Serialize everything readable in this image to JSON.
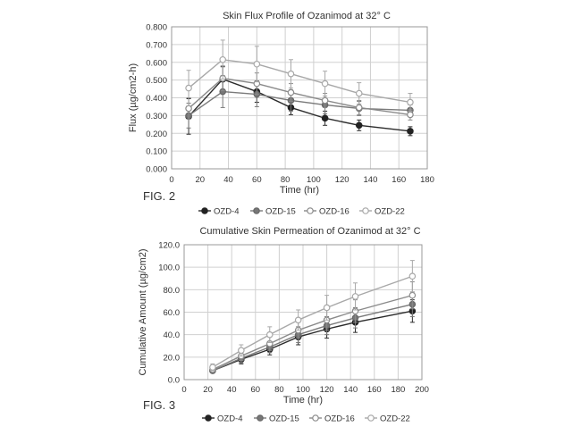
{
  "figures": [
    {
      "fig_label": "FIG. 2",
      "chart_data": {
        "type": "line",
        "title": "Skin Flux Profile of Ozanimod at 32° C",
        "xlabel": "Time (hr)",
        "ylabel": "Flux (µg/cm2-h)",
        "xlim": [
          0,
          180
        ],
        "ylim": [
          0,
          0.8
        ],
        "x_ticks": [
          "0",
          "20",
          "40",
          "60",
          "80",
          "100",
          "120",
          "140",
          "160",
          "180"
        ],
        "y_ticks": [
          "0.000",
          "0.100",
          "0.200",
          "0.300",
          "0.400",
          "0.500",
          "0.600",
          "0.700",
          "0.800"
        ],
        "grid": true,
        "legend_position": "bottom",
        "x": [
          12,
          36,
          60,
          84,
          108,
          132,
          168
        ],
        "series": [
          {
            "name": "OZD-4",
            "marker": "filled",
            "color": "#2b2b2b",
            "values": [
              0.295,
              0.505,
              0.435,
              0.345,
              0.285,
              0.245,
              0.212
            ],
            "errors": [
              0.1,
              0.07,
              0.06,
              0.04,
              0.04,
              0.03,
              0.025
            ]
          },
          {
            "name": "OZD-15",
            "marker": "filled-gray",
            "color": "#7a7a7a",
            "values": [
              0.3,
              0.435,
              0.42,
              0.385,
              0.36,
              0.34,
              0.33
            ],
            "errors": [
              0.07,
              0.09,
              0.07,
              0.06,
              0.05,
              0.04,
              0.03
            ]
          },
          {
            "name": "OZD-16",
            "marker": "open",
            "color": "#8a8a8a",
            "values": [
              0.34,
              0.51,
              0.48,
              0.43,
              0.385,
              0.345,
              0.305
            ],
            "errors": [
              0.06,
              0.07,
              0.06,
              0.05,
              0.04,
              0.04,
              0.03
            ]
          },
          {
            "name": "OZD-22",
            "marker": "open-light",
            "color": "#a8a8a8",
            "values": [
              0.455,
              0.615,
              0.59,
              0.535,
              0.48,
              0.425,
              0.375
            ],
            "errors": [
              0.1,
              0.11,
              0.1,
              0.08,
              0.07,
              0.06,
              0.05
            ]
          }
        ]
      }
    },
    {
      "fig_label": "FIG. 3",
      "chart_data": {
        "type": "line",
        "title": "Cumulative Skin Permeation of Ozanimod at 32° C",
        "xlabel": "Time (hr)",
        "ylabel": "Cumulative Amount (µg/cm2)",
        "xlim": [
          0,
          200
        ],
        "ylim": [
          0,
          120
        ],
        "x_ticks": [
          "0",
          "20",
          "40",
          "60",
          "80",
          "100",
          "120",
          "140",
          "160",
          "180",
          "200"
        ],
        "y_ticks": [
          "0.0",
          "20.0",
          "40.0",
          "60.0",
          "80.0",
          "100.0",
          "120.0"
        ],
        "grid": true,
        "legend_position": "bottom",
        "x": [
          24,
          48,
          72,
          96,
          120,
          144,
          192
        ],
        "series": [
          {
            "name": "OZD-4",
            "marker": "filled",
            "color": "#2b2b2b",
            "values": [
              8,
              18,
              27,
              38,
              45,
              51,
              61
            ],
            "errors": [
              2,
              4,
              5,
              7,
              8,
              9,
              10
            ]
          },
          {
            "name": "OZD-15",
            "marker": "filled-gray",
            "color": "#7a7a7a",
            "values": [
              8,
              19,
              29,
              40,
              48,
              55,
              67
            ],
            "errors": [
              2,
              4,
              5,
              7,
              8,
              9,
              11
            ]
          },
          {
            "name": "OZD-16",
            "marker": "open",
            "color": "#8a8a8a",
            "values": [
              9,
              21,
              32,
              44,
              53,
              61,
              75
            ],
            "errors": [
              2,
              4,
              6,
              7,
              9,
              10,
              12
            ]
          },
          {
            "name": "OZD-22",
            "marker": "open-light",
            "color": "#a8a8a8",
            "values": [
              11,
              26,
              40,
              53,
              64,
              74,
              92
            ],
            "errors": [
              3,
              5,
              7,
              9,
              11,
              12,
              14
            ]
          }
        ]
      }
    }
  ]
}
